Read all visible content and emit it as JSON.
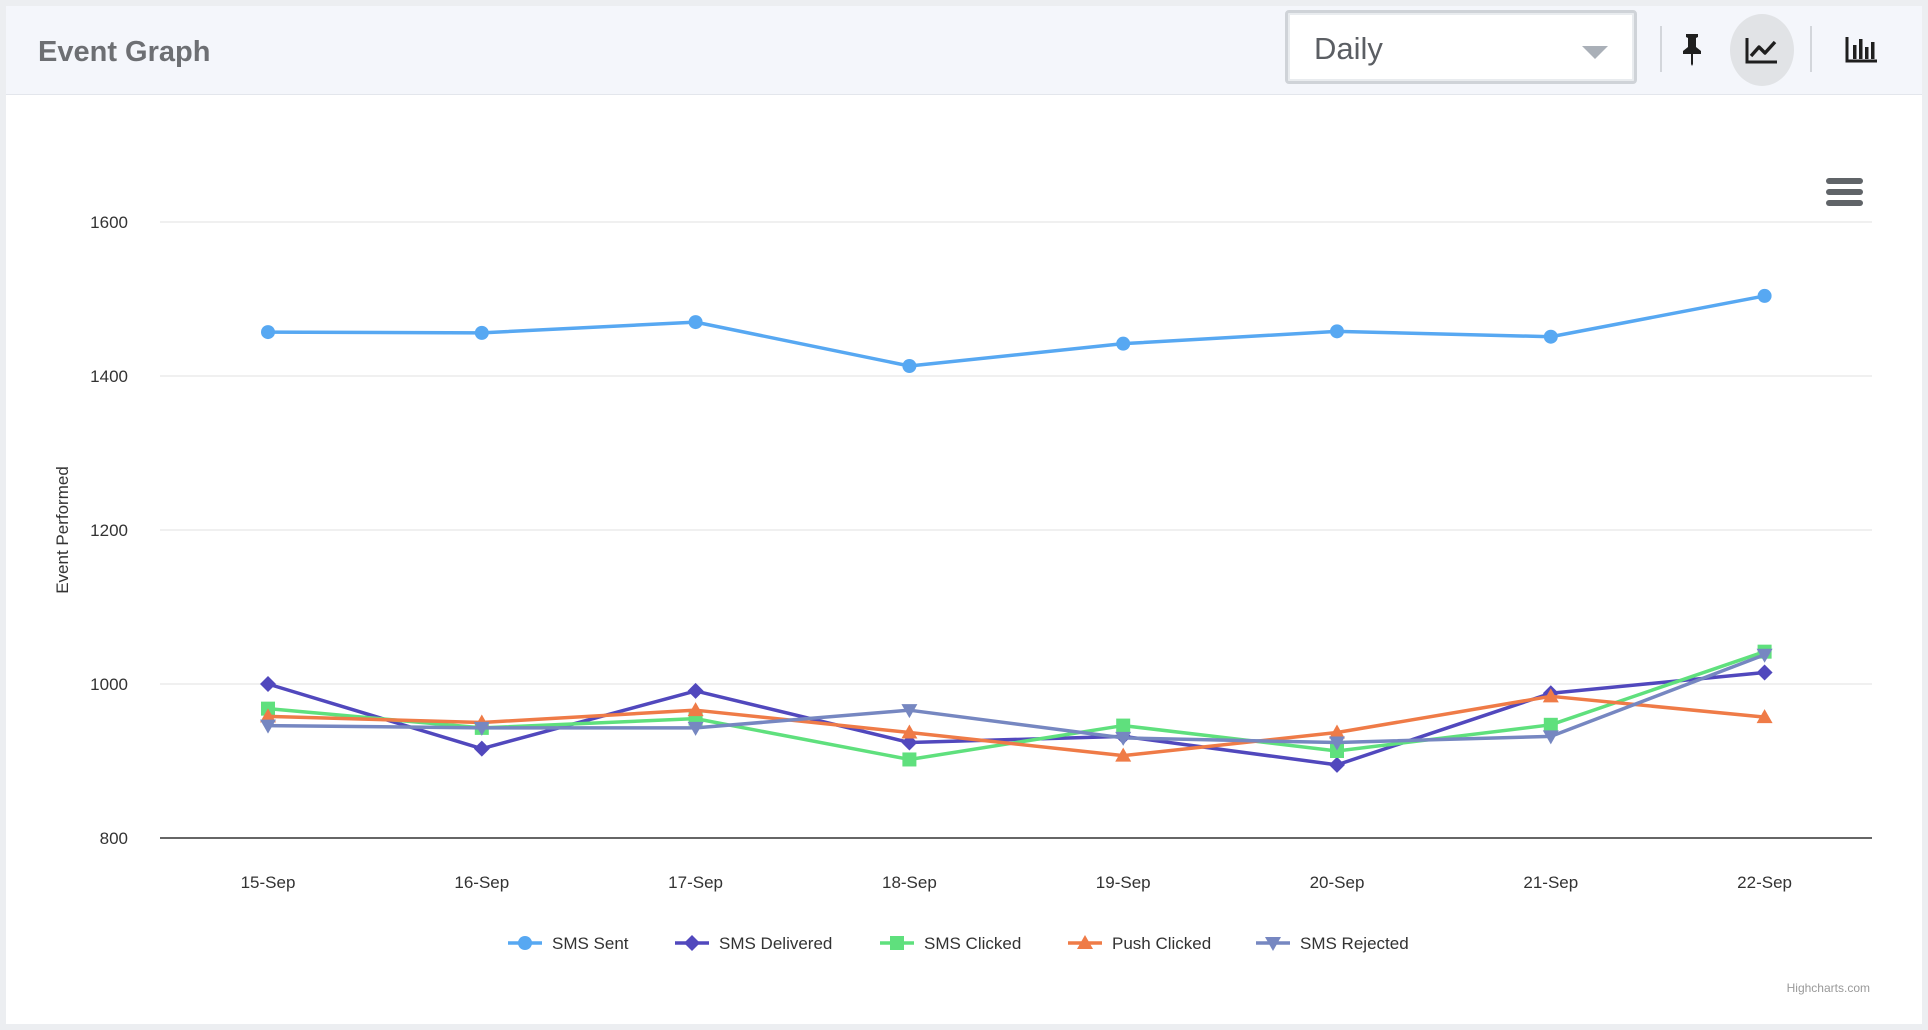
{
  "header": {
    "title": "Event Graph",
    "period_select": {
      "value": "Daily"
    },
    "icons": [
      "pin-icon",
      "line-chart-icon",
      "bar-chart-icon"
    ]
  },
  "colors": {
    "sms_sent": "#57a8f2",
    "sms_delivered": "#5148bd",
    "sms_clicked": "#5fe07d",
    "push_clicked": "#ef7b47",
    "sms_rejected": "#7687c1"
  },
  "chart_data": {
    "type": "line",
    "title": "",
    "ylabel": "Event Performed",
    "xlabel": "",
    "categories": [
      "15-Sep",
      "16-Sep",
      "17-Sep",
      "18-Sep",
      "19-Sep",
      "20-Sep",
      "21-Sep",
      "22-Sep"
    ],
    "yticks": [
      800,
      1000,
      1200,
      1400,
      1600
    ],
    "ylim": [
      800,
      1600
    ],
    "grid": true,
    "legend_position": "bottom-center",
    "credit": "Highcharts.com",
    "series": [
      {
        "name": "SMS Sent",
        "marker": "circle",
        "color": "#57a8f2",
        "values": [
          1457,
          1456,
          1470,
          1413,
          1442,
          1458,
          1451,
          1504
        ]
      },
      {
        "name": "SMS Delivered",
        "marker": "diamond",
        "color": "#5148bd",
        "values": [
          1000,
          916,
          991,
          924,
          932,
          895,
          988,
          1015
        ]
      },
      {
        "name": "SMS Clicked",
        "marker": "square",
        "color": "#5fe07d",
        "values": [
          968,
          943,
          955,
          902,
          946,
          913,
          947,
          1042
        ]
      },
      {
        "name": "Push Clicked",
        "marker": "triangle",
        "color": "#ef7b47",
        "values": [
          958,
          950,
          966,
          937,
          907,
          937,
          984,
          957
        ]
      },
      {
        "name": "SMS Rejected",
        "marker": "triangle-down",
        "color": "#7687c1",
        "values": [
          946,
          943,
          943,
          966,
          930,
          924,
          932,
          1038
        ]
      }
    ]
  }
}
